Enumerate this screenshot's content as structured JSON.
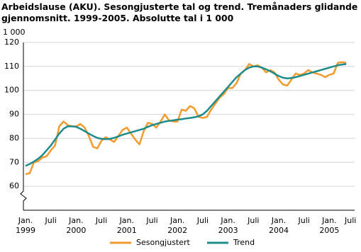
{
  "chart_data": {
    "type": "line",
    "title": "Arbeidslause (AKU). Sesongjusterte tal og trend. Tremånaders glidande gjennomsnitt. 1999-2005. Absolutte tal i 1 000",
    "y_unit": "1 000",
    "categories": [
      "Jan. 1999",
      null,
      null,
      null,
      null,
      null,
      "Juli",
      null,
      null,
      null,
      null,
      null,
      "Jan. 2000",
      null,
      null,
      null,
      null,
      null,
      "Juli",
      null,
      null,
      null,
      null,
      null,
      "Jan. 2001",
      null,
      null,
      null,
      null,
      null,
      "Juli",
      null,
      null,
      null,
      null,
      null,
      "Jan. 2002",
      null,
      null,
      null,
      null,
      null,
      "Juli",
      null,
      null,
      null,
      null,
      null,
      "Jan. 2003",
      null,
      null,
      null,
      null,
      null,
      "Juli",
      null,
      null,
      null,
      null,
      null,
      "Jan. 2004",
      null,
      null,
      null,
      null,
      null,
      "Juli",
      null,
      null,
      null,
      null,
      null,
      "Jan. 2005",
      null,
      null,
      null,
      null,
      "Juli"
    ],
    "series": [
      {
        "name": "Sesongjustert",
        "color": "#f39a2d",
        "values": [
          65,
          65.5,
          70,
          70.5,
          72,
          72.5,
          75,
          77,
          85,
          87,
          85.5,
          85,
          85,
          86,
          84.5,
          81,
          76.5,
          75.8,
          79,
          80.5,
          79.5,
          78.5,
          81,
          83.5,
          84.5,
          82,
          79.5,
          77.5,
          83,
          86.5,
          86,
          84.5,
          87,
          90,
          87.5,
          87,
          87,
          92,
          91.5,
          93.5,
          92.5,
          89,
          88.5,
          89,
          92,
          94.5,
          97,
          98.5,
          101,
          101,
          103,
          107,
          108.5,
          111,
          110,
          110.5,
          109.5,
          107.5,
          108.5,
          107.5,
          104.5,
          102.5,
          102,
          104.5,
          107,
          106.5,
          107,
          108.5,
          107.5,
          107,
          106.5,
          105.5,
          106.5,
          107,
          111.5,
          111.8,
          111.5,
          null
        ]
      },
      {
        "name": "Trend",
        "color": "#1f8c8c",
        "values": [
          68.5,
          69.3,
          70.3,
          71.5,
          73,
          75,
          77,
          79.5,
          82,
          84,
          85,
          85,
          84.8,
          84,
          83,
          82,
          81,
          80.2,
          79.8,
          79.7,
          79.8,
          80.2,
          80.8,
          81.5,
          82,
          82.5,
          83,
          83.5,
          84,
          84.8,
          85.5,
          86,
          86.5,
          87,
          87.3,
          87.5,
          87.8,
          88,
          88.3,
          88.5,
          88.8,
          89.2,
          90,
          91.5,
          93.5,
          95.5,
          97.5,
          99.5,
          101.5,
          103.5,
          105.5,
          107,
          108.5,
          109.5,
          110,
          110,
          109.5,
          108.8,
          108,
          107,
          106,
          105.3,
          105,
          105.2,
          105.5,
          106,
          106.5,
          107,
          107.5,
          108,
          108.5,
          109,
          109.5,
          110,
          110.5,
          110.8,
          111,
          null
        ]
      }
    ],
    "ylim": [
      50,
      120
    ],
    "yticks": [
      60,
      70,
      80,
      90,
      100,
      110,
      120
    ],
    "grid": true
  }
}
